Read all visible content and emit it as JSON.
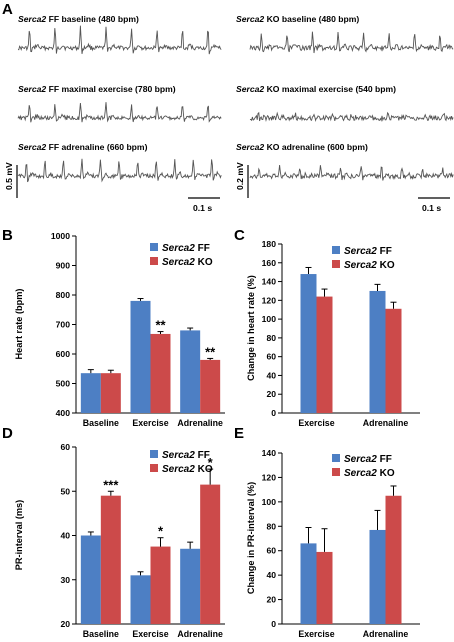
{
  "panels": {
    "A": "A",
    "B": "B",
    "C": "C",
    "D": "D",
    "E": "E"
  },
  "ecg": {
    "left_titles": [
      {
        "gene": "Serca2",
        "rest": " FF baseline (480 bpm)"
      },
      {
        "gene": "Serca2",
        "rest": " FF maximal exercise (780 bpm)"
      },
      {
        "gene": "Serca2",
        "rest": " FF adrenaline (660 bpm)"
      }
    ],
    "right_titles": [
      {
        "gene": "Serca2",
        "rest": " KO baseline (480 bpm)"
      },
      {
        "gene": "Serca2",
        "rest": " KO maximal exercise (540 bpm)"
      },
      {
        "gene": "Serca2",
        "rest": " KO adrenaline (600 bpm)"
      }
    ],
    "left_scale_v": "0.5 mV",
    "left_scale_t": "0.1 s",
    "right_scale_v": "0.2 mV",
    "right_scale_t": "0.1 s"
  },
  "legend": {
    "gene": "Serca2",
    "ff": " FF",
    "ko": " KO"
  },
  "colors": {
    "ff": "#4d7fc4",
    "ko": "#cc4a4a",
    "axis": "#000000",
    "trace": "#555555"
  },
  "chart_data": [
    {
      "panel": "B",
      "type": "bar",
      "categories": [
        "Baseline",
        "Exercise",
        "Adrenaline"
      ],
      "ylabel": "Heart rate (bpm)",
      "ylim": [
        400,
        1000
      ],
      "yticks": [
        400,
        500,
        600,
        700,
        800,
        900,
        1000
      ],
      "series": [
        {
          "name": "Serca2 FF",
          "values": [
            535,
            780,
            680
          ],
          "errors": [
            12,
            8,
            8
          ]
        },
        {
          "name": "Serca2 KO",
          "values": [
            535,
            668,
            580
          ],
          "errors": [
            10,
            8,
            5
          ]
        }
      ],
      "annotations": [
        {
          "category": "Exercise",
          "series": 1,
          "text": "**"
        },
        {
          "category": "Adrenaline",
          "series": 1,
          "text": "**"
        }
      ],
      "legend_position": "top-right"
    },
    {
      "panel": "C",
      "type": "bar",
      "categories": [
        "Exercise",
        "Adrenaline"
      ],
      "ylabel": "Change in heart rate (%)",
      "ylim": [
        0,
        180
      ],
      "yticks": [
        0,
        20,
        40,
        60,
        80,
        100,
        120,
        140,
        160,
        180
      ],
      "series": [
        {
          "name": "Serca2 FF",
          "values": [
            148,
            130
          ],
          "errors": [
            7,
            7
          ]
        },
        {
          "name": "Serca2 KO",
          "values": [
            124,
            111
          ],
          "errors": [
            8,
            7
          ]
        }
      ],
      "annotations": [],
      "legend_position": "top-right"
    },
    {
      "panel": "D",
      "type": "bar",
      "categories": [
        "Baseline",
        "Exercise",
        "Adrenaline"
      ],
      "ylabel": "PR-interval (ms)",
      "ylim": [
        20,
        60
      ],
      "yticks": [
        20,
        30,
        40,
        50,
        60
      ],
      "series": [
        {
          "name": "Serca2 FF",
          "values": [
            40,
            31,
            37
          ],
          "errors": [
            0.8,
            0.8,
            1.5
          ]
        },
        {
          "name": "Serca2 KO",
          "values": [
            49,
            37.5,
            51.5
          ],
          "errors": [
            1.0,
            2.0,
            3.5
          ]
        }
      ],
      "annotations": [
        {
          "category": "Baseline",
          "series": 1,
          "text": "***"
        },
        {
          "category": "Exercise",
          "series": 1,
          "text": "*"
        },
        {
          "category": "Adrenaline",
          "series": 1,
          "text": "*"
        }
      ],
      "legend_position": "top-right"
    },
    {
      "panel": "E",
      "type": "bar",
      "categories": [
        "Exercise",
        "Adrenaline"
      ],
      "ylabel": "Change in PR-interval (%)",
      "ylim": [
        0,
        140
      ],
      "yticks": [
        0,
        20,
        40,
        60,
        80,
        100,
        120,
        140
      ],
      "series": [
        {
          "name": "Serca2 FF",
          "values": [
            66,
            77
          ],
          "errors": [
            13,
            16
          ]
        },
        {
          "name": "Serca2 KO",
          "values": [
            59,
            105
          ],
          "errors": [
            19,
            8
          ]
        }
      ],
      "annotations": [],
      "legend_position": "top-right"
    }
  ]
}
